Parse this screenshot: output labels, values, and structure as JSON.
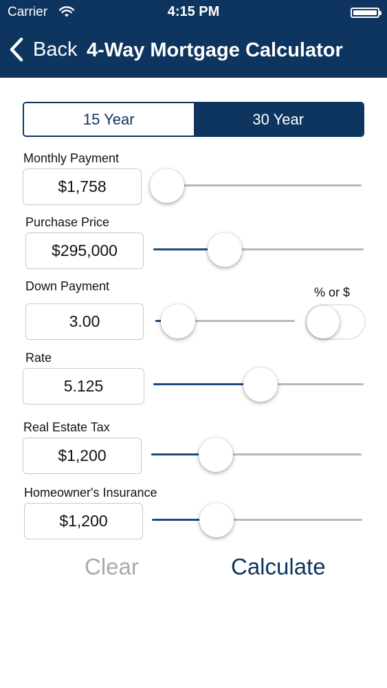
{
  "status_bar": {
    "carrier": "Carrier",
    "time": "4:15 PM"
  },
  "nav": {
    "back_label": "Back",
    "title": "4-Way Mortgage Calculator"
  },
  "term": {
    "options": [
      "15 Year",
      "30 Year"
    ],
    "selected": "30 Year"
  },
  "fields": {
    "monthly_payment": {
      "label": "Monthly Payment",
      "value": "$1,758",
      "slider_level": 0.0
    },
    "purchase_price": {
      "label": "Purchase Price",
      "value": "$295,000",
      "slider_level": 0.31
    },
    "down_payment": {
      "label": "Down Payment",
      "value": "3.00",
      "slider_level": 0.05
    },
    "rate": {
      "label": "Rate",
      "value": "5.125",
      "slider_level": 0.51
    },
    "real_estate_tax": {
      "label": "Real Estate Tax",
      "value": "$1,200",
      "slider_level": 0.27
    },
    "homeowners_insurance": {
      "label": "Homeowner's Insurance",
      "value": "$1,200",
      "slider_level": 0.27
    }
  },
  "down_payment_toggle": {
    "caption": "% or $",
    "on": false
  },
  "actions": {
    "clear_label": "Clear",
    "calculate_label": "Calculate"
  },
  "colors": {
    "brand": "#0e3560",
    "disabled": "#aaaaaa"
  },
  "icons": {
    "back": "chevron-left-icon",
    "wifi": "wifi-icon",
    "battery": "battery-icon"
  }
}
